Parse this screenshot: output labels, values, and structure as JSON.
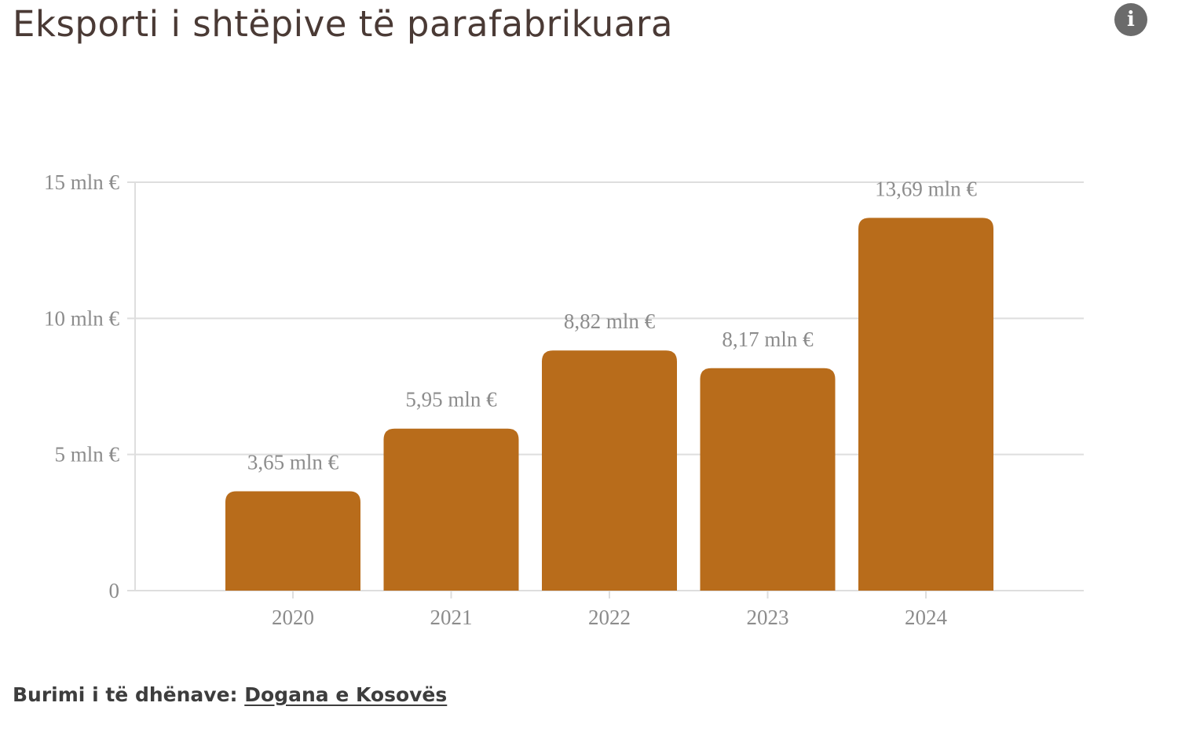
{
  "title": "Eksporti i shtëpive të parafabrikuara",
  "info_icon_glyph": "i",
  "source": {
    "prefix": "Burimi i të dhënave:",
    "link_text": "Dogana e Kosovës"
  },
  "colors": {
    "bar": "#b86c1b",
    "grid": "#dedede",
    "axis_text": "#8c8c8c",
    "title": "#4a3a35"
  },
  "chart_data": {
    "type": "bar",
    "title": "Eksporti i shtëpive të parafabrikuara",
    "xlabel": "",
    "ylabel": "",
    "categories": [
      "2020",
      "2021",
      "2022",
      "2023",
      "2024"
    ],
    "values": [
      3.65,
      5.95,
      8.82,
      8.17,
      13.69
    ],
    "data_labels": [
      "3,65 mln €",
      "5,95 mln €",
      "8,82 mln €",
      "8,17 mln €",
      "13,69 mln €"
    ],
    "ylim": [
      0,
      15
    ],
    "yticks": [
      0,
      5,
      10,
      15
    ],
    "ytick_labels": [
      "0",
      "5 mln €",
      "10 mln €",
      "15 mln €"
    ],
    "grid": true,
    "legend": "none"
  }
}
